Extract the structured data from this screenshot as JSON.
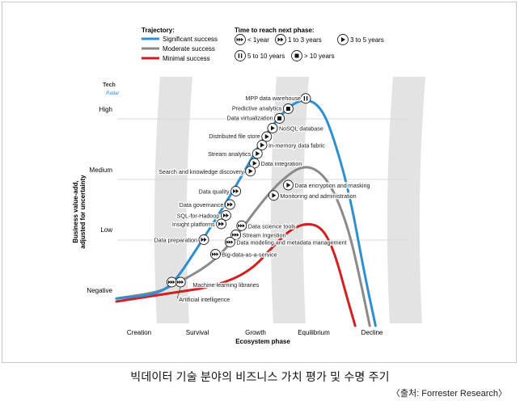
{
  "chart_data": {
    "type": "line",
    "tech_radar": {
      "line1": "Tech",
      "line2": "Radar"
    },
    "legend": {
      "trajectory_title": "Trajectory:",
      "trajectories": [
        {
          "name": "Significant success",
          "color": "#2f8fd0"
        },
        {
          "name": "Moderate success",
          "color": "#8a8a8c"
        },
        {
          "name": "Minimal success",
          "color": "#d22020"
        }
      ],
      "time_title": "Time to reach next phase:",
      "times": [
        {
          "icon": "double-fast-forward-icon",
          "label": "< 1year"
        },
        {
          "icon": "fast-forward-icon",
          "label": "1 to 3 years"
        },
        {
          "icon": "play-icon",
          "label": "3 to 5 years"
        },
        {
          "icon": "pause-icon",
          "label": "5 to 10 years"
        },
        {
          "icon": "stop-icon",
          "label": "> 10 years"
        }
      ]
    },
    "ylabel": "Business value-add,\nadjusted for uncertainty",
    "xlabel": "Ecosystem phase",
    "y_levels": [
      "Negative",
      "Low",
      "Medium",
      "High"
    ],
    "x_phases": [
      "Creation",
      "Survival",
      "Growth",
      "Equilibrium",
      "Decline"
    ],
    "series": [
      {
        "name": "Significant success",
        "color": "#2f8fd0",
        "points": [
          [
            -0.5,
            -0.15
          ],
          [
            0.2,
            -0.08
          ],
          [
            0.5,
            0.12
          ],
          [
            0.9,
            0.7
          ],
          [
            1.3,
            1.3
          ],
          [
            1.7,
            1.95
          ],
          [
            2.05,
            2.55
          ],
          [
            2.45,
            3.02
          ],
          [
            2.75,
            3.15
          ],
          [
            3.0,
            3.02
          ],
          [
            3.2,
            2.6
          ],
          [
            3.5,
            1.6
          ],
          [
            3.75,
            0.3
          ],
          [
            3.95,
            -0.6
          ]
        ]
      },
      {
        "name": "Moderate success",
        "color": "#8a8a8c",
        "points": [
          [
            -0.5,
            -0.15
          ],
          [
            0.2,
            -0.05
          ],
          [
            0.5,
            0.08
          ],
          [
            1.1,
            0.4
          ],
          [
            1.5,
            0.8
          ],
          [
            2.0,
            1.45
          ],
          [
            2.35,
            1.82
          ],
          [
            2.7,
            2.05
          ],
          [
            3.0,
            1.95
          ],
          [
            3.25,
            1.6
          ],
          [
            3.5,
            0.95
          ],
          [
            3.7,
            0.1
          ],
          [
            3.85,
            -0.6
          ]
        ]
      },
      {
        "name": "Minimal success",
        "color": "#d22020",
        "points": [
          [
            -0.5,
            -0.2
          ],
          [
            0.5,
            -0.05
          ],
          [
            1.2,
            0.05
          ],
          [
            1.8,
            0.3
          ],
          [
            2.2,
            0.72
          ],
          [
            2.5,
            1.0
          ],
          [
            2.8,
            1.1
          ],
          [
            3.05,
            1.0
          ],
          [
            3.25,
            0.6
          ],
          [
            3.45,
            -0.1
          ],
          [
            3.6,
            -0.6
          ]
        ]
      }
    ],
    "markers": [
      {
        "label": "MPP data warehouse",
        "icon": "pause",
        "x": 2.75,
        "y": 3.15
      },
      {
        "label": "Predictive analytics",
        "icon": "stop",
        "x": 2.45,
        "y": 2.98
      },
      {
        "label": "Data virtualization",
        "icon": "stop",
        "x": 2.3,
        "y": 2.82
      },
      {
        "label": "NoSQL database",
        "icon": "play",
        "x": 2.18,
        "y": 2.66
      },
      {
        "label": "Distributed file store",
        "icon": "play",
        "x": 2.08,
        "y": 2.52
      },
      {
        "label": "In-memory data fabric",
        "icon": "play",
        "x": 2.0,
        "y": 2.38
      },
      {
        "label": "Stream analytics",
        "icon": "play",
        "x": 1.92,
        "y": 2.24
      },
      {
        "label": "Data integration",
        "icon": "play",
        "x": 1.87,
        "y": 2.08
      },
      {
        "label": "Search and knowledge discovery",
        "icon": "play",
        "x": 1.8,
        "y": 1.95
      },
      {
        "label": "Data encryption and masking",
        "icon": "play",
        "x": 2.45,
        "y": 1.72
      },
      {
        "label": "Monitoring and administration",
        "icon": "play",
        "x": 2.2,
        "y": 1.55
      },
      {
        "label": "Data quality",
        "icon": "fast-forward",
        "x": 1.55,
        "y": 1.62
      },
      {
        "label": "Data governance",
        "icon": "fast-forward",
        "x": 1.45,
        "y": 1.4
      },
      {
        "label": "SQL-for-Hadoop",
        "icon": "fast-forward",
        "x": 1.38,
        "y": 1.22
      },
      {
        "label": "Insight platforms",
        "icon": "fast-forward",
        "x": 1.3,
        "y": 1.08
      },
      {
        "label": "Data science tools",
        "icon": "double-fast-forward",
        "x": 1.65,
        "y": 1.05
      },
      {
        "label": "Stream ingestion",
        "icon": "double-fast-forward",
        "x": 1.55,
        "y": 0.9
      },
      {
        "label": "Data preparation",
        "icon": "fast-forward",
        "x": 1.0,
        "y": 0.82
      },
      {
        "label": "Data modeling and metadata management",
        "icon": "double-fast-forward",
        "x": 1.45,
        "y": 0.78
      },
      {
        "label": "Big-data-as-a-service",
        "icon": "double-fast-forward",
        "x": 1.2,
        "y": 0.58
      },
      {
        "label": "Machine learning libraries",
        "icon": "double-fast-forward",
        "x": 0.45,
        "y": 0.12
      },
      {
        "label": "Artificial intelligence",
        "icon": "double-fast-forward",
        "x": 0.6,
        "y": 0.12
      }
    ]
  },
  "caption": "빅데이터 기술 분야의 비즈니스 가치 평가 및 수명 주기",
  "source": "〈출처: Forrester Research〉"
}
